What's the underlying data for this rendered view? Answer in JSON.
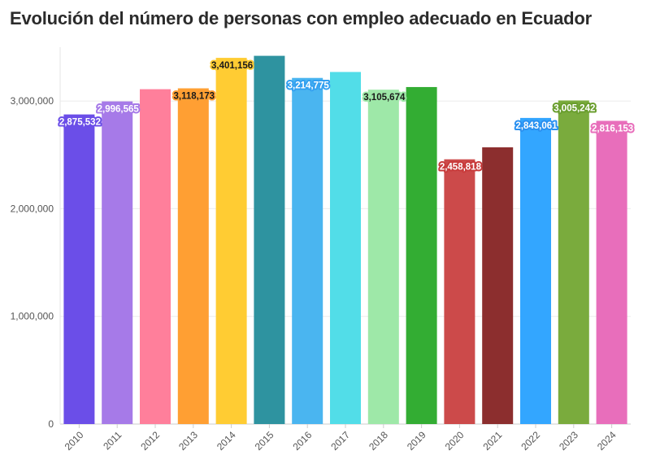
{
  "chart_data": {
    "type": "bar",
    "title": "Evolución del número de personas con empleo adecuado en Ecuador",
    "xlabel": "",
    "ylabel": "",
    "ylim": [
      0,
      3500000
    ],
    "yticks": [
      0,
      1000000,
      2000000,
      3000000
    ],
    "ytick_labels": [
      "0",
      "1,000,000",
      "2,000,000",
      "3,000,000"
    ],
    "grid": true,
    "legend": "none",
    "categories": [
      "2010",
      "2011",
      "2012",
      "2013",
      "2014",
      "2015",
      "2016",
      "2017",
      "2018",
      "2019",
      "2020",
      "2021",
      "2022",
      "2023",
      "2024"
    ],
    "values": [
      2875532,
      2996565,
      3110000,
      3118173,
      3401156,
      3420000,
      3214775,
      3270000,
      3105674,
      3130000,
      2458818,
      2570000,
      2843061,
      3005242,
      2816153
    ],
    "data_labels": [
      "2,875,532",
      "2,996,565",
      "",
      "3,118,173",
      "3,401,156",
      "",
      "3,214,775",
      "",
      "3,105,674",
      "",
      "2,458,818",
      "",
      "2,843,061",
      "3,005,242",
      "2,816,153"
    ],
    "colors": [
      "#6b4ee8",
      "#a67ae8",
      "#ff7f9b",
      "#ff9f33",
      "#ffcc33",
      "#2e93a0",
      "#4ab5f0",
      "#52dde8",
      "#9ee8a8",
      "#33ad33",
      "#cc4a4a",
      "#8c2e2e",
      "#33a6ff",
      "#7aab3d",
      "#e86ebb"
    ],
    "label_colors": [
      "#6b4ee8",
      "#a67ae8",
      "#ff7f9b",
      "#ff9f33",
      "#ffcc33",
      "#2e93a0",
      "#33a0f0",
      "#52dde8",
      "#9ee8a8",
      "#33ad33",
      "#c83a3a",
      "#8c2e2e",
      "#2a90f0",
      "#6a9e2e",
      "#e86ebb"
    ]
  }
}
